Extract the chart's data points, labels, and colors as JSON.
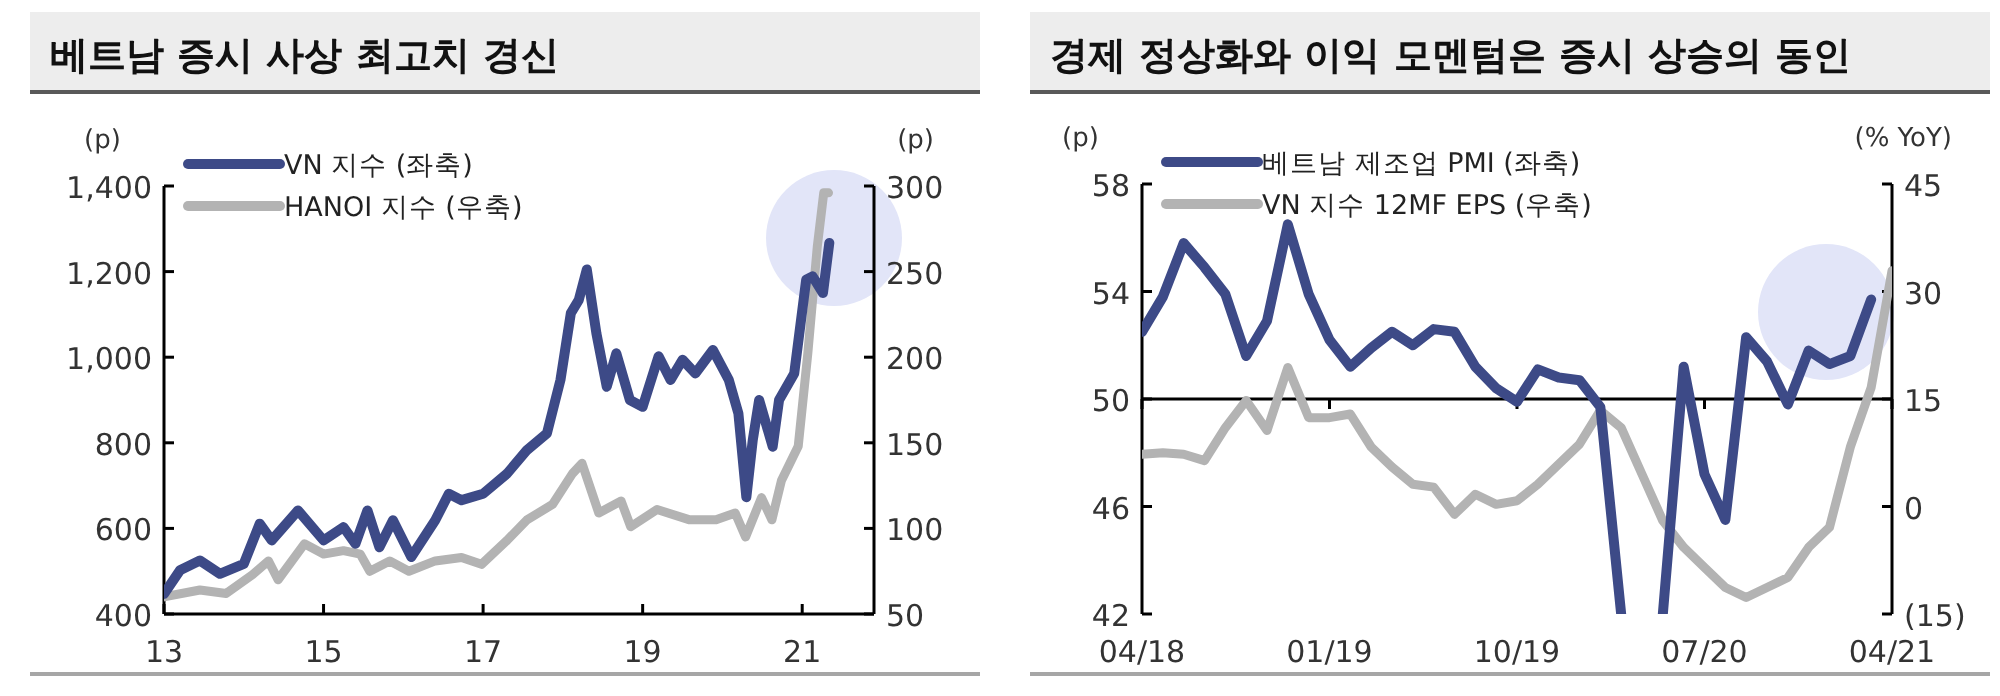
{
  "chart_data": [
    {
      "type": "line",
      "title": "베트남 증시 사상 최고치 경신",
      "ylabel": "(p)",
      "y2label": "(p)",
      "legend": "top left",
      "xlim": [
        2013,
        2021.9
      ],
      "xticks": [
        {
          "value": 2013,
          "label": "13"
        },
        {
          "value": 2015,
          "label": "15"
        },
        {
          "value": 2017,
          "label": "17"
        },
        {
          "value": 2019,
          "label": "19"
        },
        {
          "value": 2021,
          "label": "21"
        }
      ],
      "ylim": [
        400,
        1400
      ],
      "yticks": [
        400,
        600,
        800,
        {
          "value": 1000,
          "label": "1,000"
        },
        {
          "value": 1200,
          "label": "1,200"
        },
        {
          "value": 1400,
          "label": "1,400"
        }
      ],
      "y2lim": [
        50,
        300
      ],
      "y2ticks": [
        50,
        100,
        150,
        200,
        250,
        300
      ],
      "series": [
        {
          "name": "VN 지수 (좌축)",
          "color": "#3d4a87",
          "x": [
            2013.0,
            2013.2,
            2013.45,
            2013.7,
            2014.0,
            2014.2,
            2014.35,
            2014.68,
            2015.0,
            2015.25,
            2015.4,
            2015.55,
            2015.7,
            2015.87,
            2016.1,
            2016.4,
            2016.57,
            2016.73,
            2017.0,
            2017.3,
            2017.55,
            2017.8,
            2017.97,
            2018.1,
            2018.2,
            2018.3,
            2018.42,
            2018.55,
            2018.67,
            2018.84,
            2019.0,
            2019.2,
            2019.35,
            2019.5,
            2019.66,
            2019.88,
            2020.08,
            2020.2,
            2020.3,
            2020.38,
            2020.46,
            2020.63,
            2020.71,
            2020.9,
            2021.05,
            2021.13,
            2021.26,
            2021.34
          ],
          "values": [
            447,
            502,
            525,
            494,
            517,
            611,
            572,
            642,
            572,
            603,
            564,
            642,
            556,
            619,
            533,
            619,
            681,
            666,
            681,
            728,
            783,
            822,
            947,
            1103,
            1134,
            1205,
            1056,
            931,
            1009,
            900,
            884,
            1002,
            947,
            994,
            962,
            1017,
            947,
            869,
            673,
            806,
            900,
            791,
            900,
            962,
            1181,
            1189,
            1150,
            1267
          ]
        },
        {
          "name": "HANOI 지수 (우축)",
          "color": "#b3b3b3",
          "axis": "y2",
          "x": [
            2013.0,
            2013.45,
            2013.78,
            2014.11,
            2014.31,
            2014.43,
            2014.76,
            2015.0,
            2015.25,
            2015.46,
            2015.58,
            2015.83,
            2016.07,
            2016.4,
            2016.73,
            2016.98,
            2017.3,
            2017.55,
            2017.87,
            2018.12,
            2018.24,
            2018.45,
            2018.73,
            2018.85,
            2019.18,
            2019.59,
            2019.92,
            2020.16,
            2020.29,
            2020.49,
            2020.62,
            2020.74,
            2020.95,
            2021.07,
            2021.19,
            2021.27,
            2021.33
          ],
          "values": [
            60,
            64,
            62,
            73,
            81,
            70,
            91,
            85,
            87,
            85,
            75,
            81,
            75,
            81,
            83,
            79,
            93,
            105,
            114,
            132,
            138,
            109,
            116,
            101,
            111,
            105,
            105,
            109,
            95,
            118,
            105,
            128,
            148,
            202,
            265,
            296,
            296
          ]
        }
      ]
    },
    {
      "type": "line",
      "title": "경제 정상화와 이익 모멘텀은 증시 상승의 동인",
      "ylabel": "(p)",
      "y2label": "(% YoY)",
      "legend": "top left",
      "xlim": [
        "2018-04",
        "2021-04"
      ],
      "xticks": [
        {
          "value": "2018-04",
          "label": "04/18"
        },
        {
          "value": "2019-01",
          "label": "01/19"
        },
        {
          "value": "2019-10",
          "label": "10/19"
        },
        {
          "value": "2020-07",
          "label": "07/20"
        },
        {
          "value": "2021-04",
          "label": "04/21"
        }
      ],
      "ylim": [
        42,
        58
      ],
      "yticks": [
        42,
        46,
        50,
        54,
        58
      ],
      "y2lim": [
        -15,
        45
      ],
      "y2ticks": [
        {
          "value": -15,
          "label": "(15)"
        },
        0,
        15,
        30,
        45
      ],
      "ref_lines": [
        {
          "axis": "y",
          "value": 50,
          "color": "#000000"
        }
      ],
      "series": [
        {
          "name": "베트남 제조업 PMI (좌축)",
          "color": "#3d4a87",
          "x": [
            "2018-04",
            "2018-05",
            "2018-06",
            "2018-07",
            "2018-08",
            "2018-09",
            "2018-10",
            "2018-11",
            "2018-12",
            "2019-01",
            "2019-02",
            "2019-03",
            "2019-04",
            "2019-05",
            "2019-06",
            "2019-07",
            "2019-08",
            "2019-09",
            "2019-10",
            "2019-11",
            "2019-12",
            "2020-01",
            "2020-02",
            "2020-03",
            "2020-04",
            "2020-05",
            "2020-06",
            "2020-07",
            "2020-08",
            "2020-09",
            "2020-10",
            "2020-11",
            "2020-12",
            "2021-01",
            "2021-02",
            "2021-03"
          ],
          "values": [
            52.5,
            53.8,
            55.8,
            54.9,
            53.9,
            51.6,
            52.9,
            56.5,
            53.9,
            52.2,
            51.2,
            51.9,
            52.5,
            52.0,
            52.6,
            52.5,
            51.2,
            50.4,
            49.9,
            51.1,
            50.8,
            50.7,
            49.7,
            42,
            null,
            42,
            51.2,
            47.2,
            45.5,
            52.3,
            51.4,
            49.8,
            51.8,
            51.3,
            51.6,
            53.7
          ]
        },
        {
          "name": "VN 지수 12MF EPS (우축)",
          "color": "#b3b3b3",
          "axis": "y2",
          "x": [
            "2018-04",
            "2018-05",
            "2018-06",
            "2018-07",
            "2018-08",
            "2018-09",
            "2018-10",
            "2018-11",
            "2018-12",
            "2019-01",
            "2019-02",
            "2019-03",
            "2019-04",
            "2019-05",
            "2019-06",
            "2019-07",
            "2019-08",
            "2019-09",
            "2019-10",
            "2019-11",
            "2019-12",
            "2020-01",
            "2020-02",
            "2020-03",
            "2020-04",
            "2020-05",
            "2020-06",
            "2020-07",
            "2020-08",
            "2020-09",
            "2020-10",
            "2020-11",
            "2020-12",
            "2021-01",
            "2021-02",
            "2021-03",
            "2021-04"
          ],
          "values": [
            7.3,
            7.5,
            7.3,
            6.4,
            11.0,
            14.8,
            10.6,
            19.4,
            12.4,
            12.4,
            12.9,
            8.3,
            5.5,
            3.1,
            2.7,
            -1.1,
            1.7,
            0.3,
            0.8,
            3.1,
            5.9,
            8.7,
            13.4,
            11.0,
            4.5,
            -2,
            -5.7,
            -8.5,
            -11.3,
            -12.7,
            -11.3,
            -9.9,
            -5.7,
            -2.9,
            8.3,
            16.6,
            32.9
          ]
        }
      ]
    }
  ]
}
